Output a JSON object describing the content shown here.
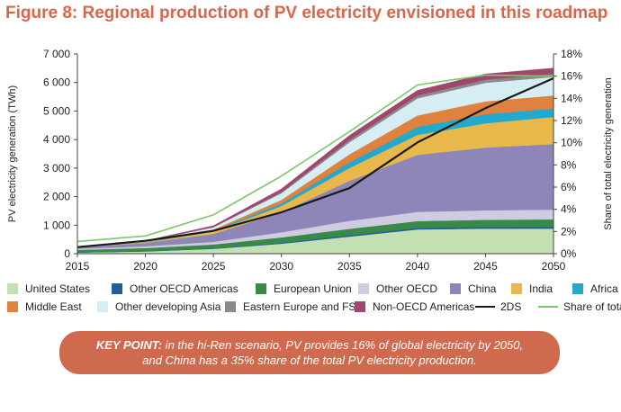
{
  "title": "Figure 8: Regional production of PV electricity envisioned in this roadmap",
  "key_point": {
    "label": "KEY POINT:",
    "line1": " in the hi-Ren scenario, PV provides 16% of global electricity by 2050,",
    "line2": "and China has a 35% share of the total PV electricity production."
  },
  "chart_data": {
    "type": "area",
    "title": "",
    "xlabel": "",
    "ylabel": "PV electricity generation (TWh)",
    "y2label": "Share of total electricity generation",
    "x": [
      2015,
      2020,
      2025,
      2030,
      2035,
      2040,
      2045,
      2050
    ],
    "xticks": [
      "2015",
      "2020",
      "2025",
      "2030",
      "2035",
      "2040",
      "2045",
      "2050"
    ],
    "ylim": [
      0,
      7000
    ],
    "yticks": [
      "0",
      "1 000",
      "2 000",
      "3 000",
      "4 000",
      "5 000",
      "6 000",
      "7 000"
    ],
    "y2lim": [
      0,
      18
    ],
    "y2ticks": [
      "0%",
      "2%",
      "4%",
      "6%",
      "8%",
      "10%",
      "12%",
      "14%",
      "16%",
      "18%"
    ],
    "grid": false,
    "legend_position": "bottom",
    "series": [
      {
        "name": "United States",
        "color": "#c4e0b2",
        "values": [
          40,
          80,
          170,
          350,
          600,
          850,
          880,
          880
        ]
      },
      {
        "name": "Other OECD Americas",
        "color": "#1f5fa0",
        "values": [
          5,
          8,
          15,
          30,
          45,
          55,
          60,
          65
        ]
      },
      {
        "name": "European Union",
        "color": "#3a8a47",
        "values": [
          90,
          110,
          140,
          190,
          230,
          240,
          250,
          260
        ]
      },
      {
        "name": "Other OECD",
        "color": "#cfcbe1",
        "values": [
          40,
          60,
          90,
          180,
          280,
          320,
          330,
          340
        ]
      },
      {
        "name": "China",
        "color": "#8e86b8",
        "values": [
          40,
          120,
          280,
          700,
          1400,
          2000,
          2200,
          2300
        ]
      },
      {
        "name": "India",
        "color": "#e8b84a",
        "values": [
          5,
          20,
          80,
          220,
          450,
          700,
          850,
          950
        ]
      },
      {
        "name": "Africa",
        "color": "#22a9cc",
        "values": [
          3,
          8,
          30,
          90,
          200,
          280,
          320,
          300
        ]
      },
      {
        "name": "Middle East",
        "color": "#e0823e",
        "values": [
          3,
          8,
          40,
          130,
          280,
          400,
          450,
          450
        ]
      },
      {
        "name": "Other developing Asia",
        "color": "#d6eef3",
        "values": [
          5,
          20,
          80,
          230,
          420,
          600,
          650,
          650
        ]
      },
      {
        "name": "Eastern Europe and FSU",
        "color": "#8a8a8a",
        "values": [
          3,
          5,
          15,
          40,
          80,
          100,
          110,
          110
        ]
      },
      {
        "name": "Non-OECD Americas",
        "color": "#a0466f",
        "values": [
          5,
          15,
          40,
          110,
          160,
          180,
          200,
          200
        ]
      }
    ],
    "lines": [
      {
        "name": "2DS",
        "color": "#1a1a1a",
        "axis": "left",
        "values": [
          230,
          450,
          800,
          1450,
          2300,
          3900,
          5100,
          6150
        ]
      },
      {
        "name": "Share of total",
        "color": "#7bc769",
        "axis": "right",
        "values": [
          1.1,
          1.6,
          3.5,
          7.0,
          11.0,
          15.2,
          16.1,
          16.0
        ]
      }
    ]
  }
}
